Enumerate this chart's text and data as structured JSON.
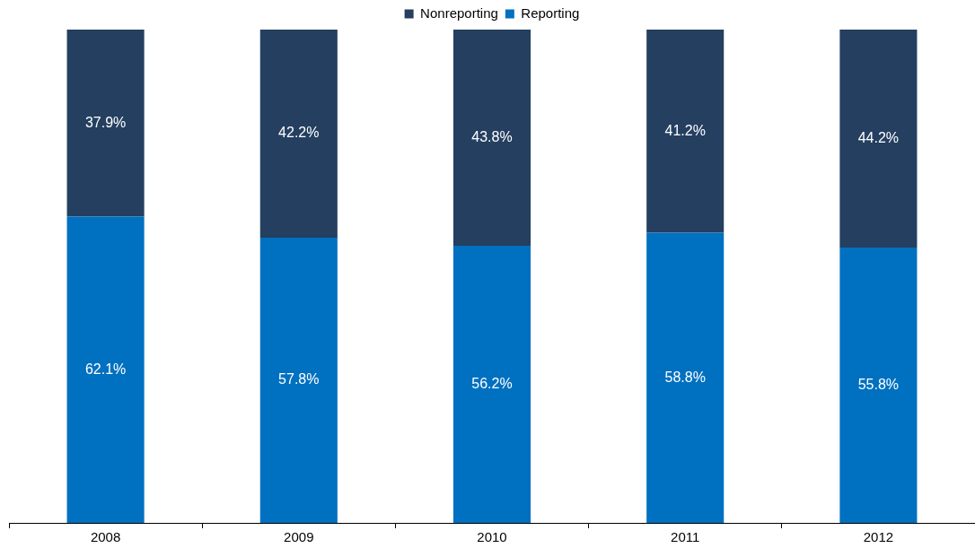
{
  "chart_data": {
    "type": "bar",
    "stacked": true,
    "categories": [
      "2008",
      "2009",
      "2010",
      "2011",
      "2012"
    ],
    "series": [
      {
        "name": "Reporting",
        "color": "#0070c0",
        "values": [
          62.1,
          57.8,
          56.2,
          58.8,
          55.8
        ],
        "value_labels": [
          "62.1%",
          "57.8%",
          "56.2%",
          "58.8%",
          "55.8%"
        ]
      },
      {
        "name": "Nonreporting",
        "color": "#243f60",
        "values": [
          37.9,
          42.2,
          43.8,
          41.2,
          44.2
        ],
        "value_labels": [
          "37.9%",
          "42.2%",
          "43.8%",
          "41.2%",
          "44.2%"
        ]
      }
    ],
    "ylim": [
      0,
      100
    ],
    "tick_labels": "x",
    "grid": false,
    "legend": "top"
  }
}
